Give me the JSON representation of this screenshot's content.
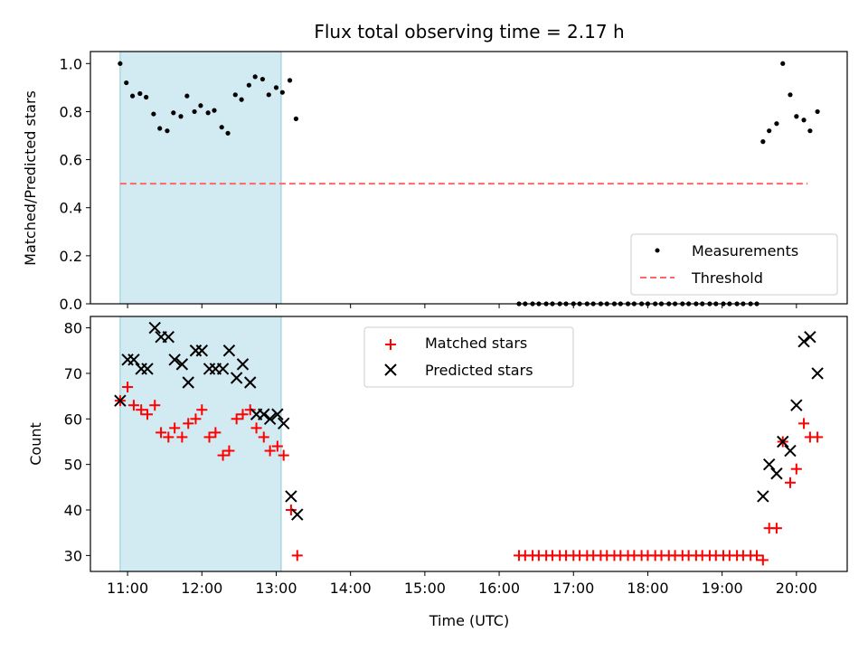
{
  "chart_data": [
    {
      "type": "scatter",
      "title": "Flux total observing time = 2.17 h",
      "xlabel": "",
      "ylabel": "Matched/Predicted stars",
      "xlim": [
        "10:30",
        "20:41"
      ],
      "ylim": [
        0,
        1.05
      ],
      "yticks": [
        "0.0",
        "0.2",
        "0.4",
        "0.6",
        "0.8",
        "1.0"
      ],
      "grid": false,
      "legend": "lower-right",
      "shaded_interval": [
        "10:54",
        "13:04"
      ],
      "shade_color": "#add8e6",
      "series": [
        {
          "name": "Measurements",
          "color": "#000000",
          "marker": "dot",
          "points": [
            [
              "10:54",
              1.0
            ],
            [
              "10:59",
              0.92
            ],
            [
              "11:04",
              0.865
            ],
            [
              "11:10",
              0.875
            ],
            [
              "11:15",
              0.86
            ],
            [
              "11:21",
              0.79
            ],
            [
              "11:26",
              0.73
            ],
            [
              "11:32",
              0.72
            ],
            [
              "11:37",
              0.795
            ],
            [
              "11:43",
              0.78
            ],
            [
              "11:48",
              0.865
            ],
            [
              "11:54",
              0.8
            ],
            [
              "11:59",
              0.825
            ],
            [
              "12:05",
              0.795
            ],
            [
              "12:10",
              0.805
            ],
            [
              "12:16",
              0.735
            ],
            [
              "12:21",
              0.71
            ],
            [
              "12:27",
              0.87
            ],
            [
              "12:32",
              0.85
            ],
            [
              "12:38",
              0.91
            ],
            [
              "12:43",
              0.945
            ],
            [
              "12:49",
              0.935
            ],
            [
              "12:54",
              0.87
            ],
            [
              "13:00",
              0.9
            ],
            [
              "13:05",
              0.88
            ],
            [
              "13:11",
              0.93
            ],
            [
              "13:16",
              0.77
            ],
            [
              "16:16",
              0
            ],
            [
              "16:21",
              0
            ],
            [
              "16:27",
              0
            ],
            [
              "16:32",
              0
            ],
            [
              "16:38",
              0
            ],
            [
              "16:43",
              0
            ],
            [
              "16:49",
              0
            ],
            [
              "16:54",
              0
            ],
            [
              "17:00",
              0
            ],
            [
              "17:05",
              0
            ],
            [
              "17:11",
              0
            ],
            [
              "17:16",
              0
            ],
            [
              "17:22",
              0
            ],
            [
              "17:27",
              0
            ],
            [
              "17:33",
              0
            ],
            [
              "17:38",
              0
            ],
            [
              "17:44",
              0
            ],
            [
              "17:49",
              0
            ],
            [
              "17:55",
              0
            ],
            [
              "18:00",
              0
            ],
            [
              "18:06",
              0
            ],
            [
              "18:11",
              0
            ],
            [
              "18:17",
              0
            ],
            [
              "18:22",
              0
            ],
            [
              "18:28",
              0
            ],
            [
              "18:33",
              0
            ],
            [
              "18:39",
              0
            ],
            [
              "18:44",
              0
            ],
            [
              "18:50",
              0
            ],
            [
              "18:55",
              0
            ],
            [
              "19:01",
              0
            ],
            [
              "19:06",
              0
            ],
            [
              "19:12",
              0
            ],
            [
              "19:17",
              0
            ],
            [
              "19:23",
              0
            ],
            [
              "19:28",
              0
            ],
            [
              "19:33",
              0.675
            ],
            [
              "19:38",
              0.72
            ],
            [
              "19:44",
              0.75
            ],
            [
              "19:49",
              1.0
            ],
            [
              "19:55",
              0.87
            ],
            [
              "20:00",
              0.78
            ],
            [
              "20:06",
              0.765
            ],
            [
              "20:11",
              0.72
            ],
            [
              "20:17",
              0.8
            ]
          ]
        },
        {
          "name": "Threshold",
          "color": "#ff6666",
          "style": "dashed",
          "points": [
            [
              "10:54",
              0.5
            ],
            [
              "20:09",
              0.5
            ]
          ]
        }
      ]
    },
    {
      "type": "scatter",
      "title": "",
      "xlabel": "Time (UTC)",
      "ylabel": "Count",
      "xlim": [
        "10:30",
        "20:41"
      ],
      "ylim": [
        26.5,
        82.5
      ],
      "yticks": [
        "30",
        "40",
        "50",
        "60",
        "70",
        "80"
      ],
      "xticks": [
        "11:00",
        "12:00",
        "13:00",
        "14:00",
        "15:00",
        "16:00",
        "17:00",
        "18:00",
        "19:00",
        "20:00"
      ],
      "grid": false,
      "legend": "top-center",
      "shaded_interval": [
        "10:54",
        "13:04"
      ],
      "shade_color": "#add8e6",
      "series": [
        {
          "name": "Matched stars",
          "color": "#ff0000",
          "marker": "plus",
          "points": [
            [
              "10:54",
              64
            ],
            [
              "11:00",
              67
            ],
            [
              "11:05",
              63
            ],
            [
              "11:11",
              62
            ],
            [
              "11:16",
              61
            ],
            [
              "11:22",
              63
            ],
            [
              "11:27",
              57
            ],
            [
              "11:33",
              56
            ],
            [
              "11:38",
              58
            ],
            [
              "11:44",
              56
            ],
            [
              "11:49",
              59
            ],
            [
              "11:55",
              60
            ],
            [
              "12:00",
              62
            ],
            [
              "12:06",
              56
            ],
            [
              "12:11",
              57
            ],
            [
              "12:17",
              52
            ],
            [
              "12:22",
              53
            ],
            [
              "12:28",
              60
            ],
            [
              "12:33",
              61
            ],
            [
              "12:39",
              62
            ],
            [
              "12:44",
              58
            ],
            [
              "12:50",
              56
            ],
            [
              "12:55",
              53
            ],
            [
              "13:01",
              54
            ],
            [
              "13:06",
              52
            ],
            [
              "13:12",
              40
            ],
            [
              "13:17",
              30
            ],
            [
              "16:16",
              30
            ],
            [
              "16:21",
              30
            ],
            [
              "16:27",
              30
            ],
            [
              "16:32",
              30
            ],
            [
              "16:38",
              30
            ],
            [
              "16:43",
              30
            ],
            [
              "16:49",
              30
            ],
            [
              "16:54",
              30
            ],
            [
              "17:00",
              30
            ],
            [
              "17:05",
              30
            ],
            [
              "17:11",
              30
            ],
            [
              "17:16",
              30
            ],
            [
              "17:22",
              30
            ],
            [
              "17:27",
              30
            ],
            [
              "17:33",
              30
            ],
            [
              "17:38",
              30
            ],
            [
              "17:44",
              30
            ],
            [
              "17:49",
              30
            ],
            [
              "17:55",
              30
            ],
            [
              "18:00",
              30
            ],
            [
              "18:06",
              30
            ],
            [
              "18:11",
              30
            ],
            [
              "18:17",
              30
            ],
            [
              "18:22",
              30
            ],
            [
              "18:28",
              30
            ],
            [
              "18:33",
              30
            ],
            [
              "18:39",
              30
            ],
            [
              "18:44",
              30
            ],
            [
              "18:50",
              30
            ],
            [
              "18:55",
              30
            ],
            [
              "19:01",
              30
            ],
            [
              "19:06",
              30
            ],
            [
              "19:12",
              30
            ],
            [
              "19:17",
              30
            ],
            [
              "19:23",
              30
            ],
            [
              "19:28",
              30
            ],
            [
              "19:33",
              29
            ],
            [
              "19:38",
              36
            ],
            [
              "19:44",
              36
            ],
            [
              "19:49",
              55
            ],
            [
              "19:55",
              46
            ],
            [
              "20:00",
              49
            ],
            [
              "20:06",
              59
            ],
            [
              "20:11",
              56
            ],
            [
              "20:17",
              56
            ]
          ]
        },
        {
          "name": "Predicted stars",
          "color": "#000000",
          "marker": "x",
          "points": [
            [
              "10:54",
              64
            ],
            [
              "11:00",
              73
            ],
            [
              "11:05",
              73
            ],
            [
              "11:11",
              71
            ],
            [
              "11:16",
              71
            ],
            [
              "11:22",
              80
            ],
            [
              "11:27",
              78
            ],
            [
              "11:33",
              78
            ],
            [
              "11:38",
              73
            ],
            [
              "11:44",
              72
            ],
            [
              "11:49",
              68
            ],
            [
              "11:55",
              75
            ],
            [
              "12:00",
              75
            ],
            [
              "12:06",
              71
            ],
            [
              "12:11",
              71
            ],
            [
              "12:17",
              71
            ],
            [
              "12:22",
              75
            ],
            [
              "12:28",
              69
            ],
            [
              "12:33",
              72
            ],
            [
              "12:39",
              68
            ],
            [
              "12:44",
              61
            ],
            [
              "12:50",
              61
            ],
            [
              "12:55",
              60
            ],
            [
              "13:01",
              61
            ],
            [
              "13:06",
              59
            ],
            [
              "13:12",
              43
            ],
            [
              "13:17",
              39
            ],
            [
              "19:33",
              43
            ],
            [
              "19:38",
              50
            ],
            [
              "19:44",
              48
            ],
            [
              "19:49",
              55
            ],
            [
              "19:55",
              53
            ],
            [
              "20:00",
              63
            ],
            [
              "20:06",
              77
            ],
            [
              "20:11",
              78
            ],
            [
              "20:17",
              70
            ]
          ]
        }
      ]
    }
  ]
}
